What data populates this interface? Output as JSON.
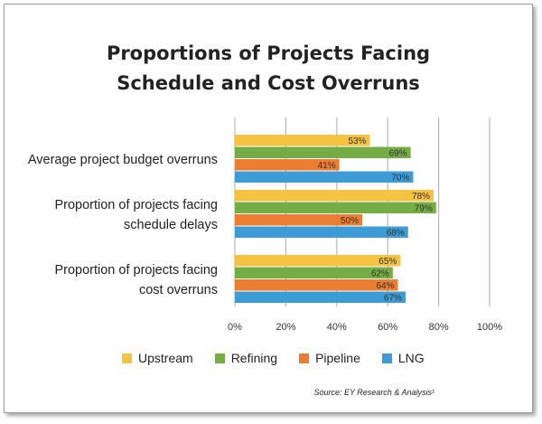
{
  "title_line1": "Proportions of Projects Facing",
  "title_line2": "Schedule and Cost Overruns",
  "source": "Source: EY Research & Analysis¹",
  "colors": {
    "Upstream": "#f5c242",
    "Refining": "#74ac46",
    "Pipeline": "#ec7d31",
    "LNG": "#3d9cd6",
    "grid": "#b8b8b8"
  },
  "chart_data": {
    "type": "bar",
    "orientation": "horizontal",
    "categories": [
      [
        "Average project budget overruns"
      ],
      [
        "Proportion of projects facing",
        "schedule delays"
      ],
      [
        "Proportion of projects facing",
        "cost overruns"
      ]
    ],
    "series": [
      {
        "name": "Upstream",
        "values": [
          53,
          78,
          65
        ]
      },
      {
        "name": "Refining",
        "values": [
          69,
          79,
          62
        ]
      },
      {
        "name": "Pipeline",
        "values": [
          41,
          50,
          64
        ]
      },
      {
        "name": "LNG",
        "values": [
          70,
          68,
          67
        ]
      }
    ],
    "xlim": [
      0,
      100
    ],
    "xticks": [
      "0%",
      "20%",
      "40%",
      "60%",
      "80%",
      "100%"
    ],
    "value_suffix": "%",
    "grid": true,
    "legend": "bottom"
  }
}
